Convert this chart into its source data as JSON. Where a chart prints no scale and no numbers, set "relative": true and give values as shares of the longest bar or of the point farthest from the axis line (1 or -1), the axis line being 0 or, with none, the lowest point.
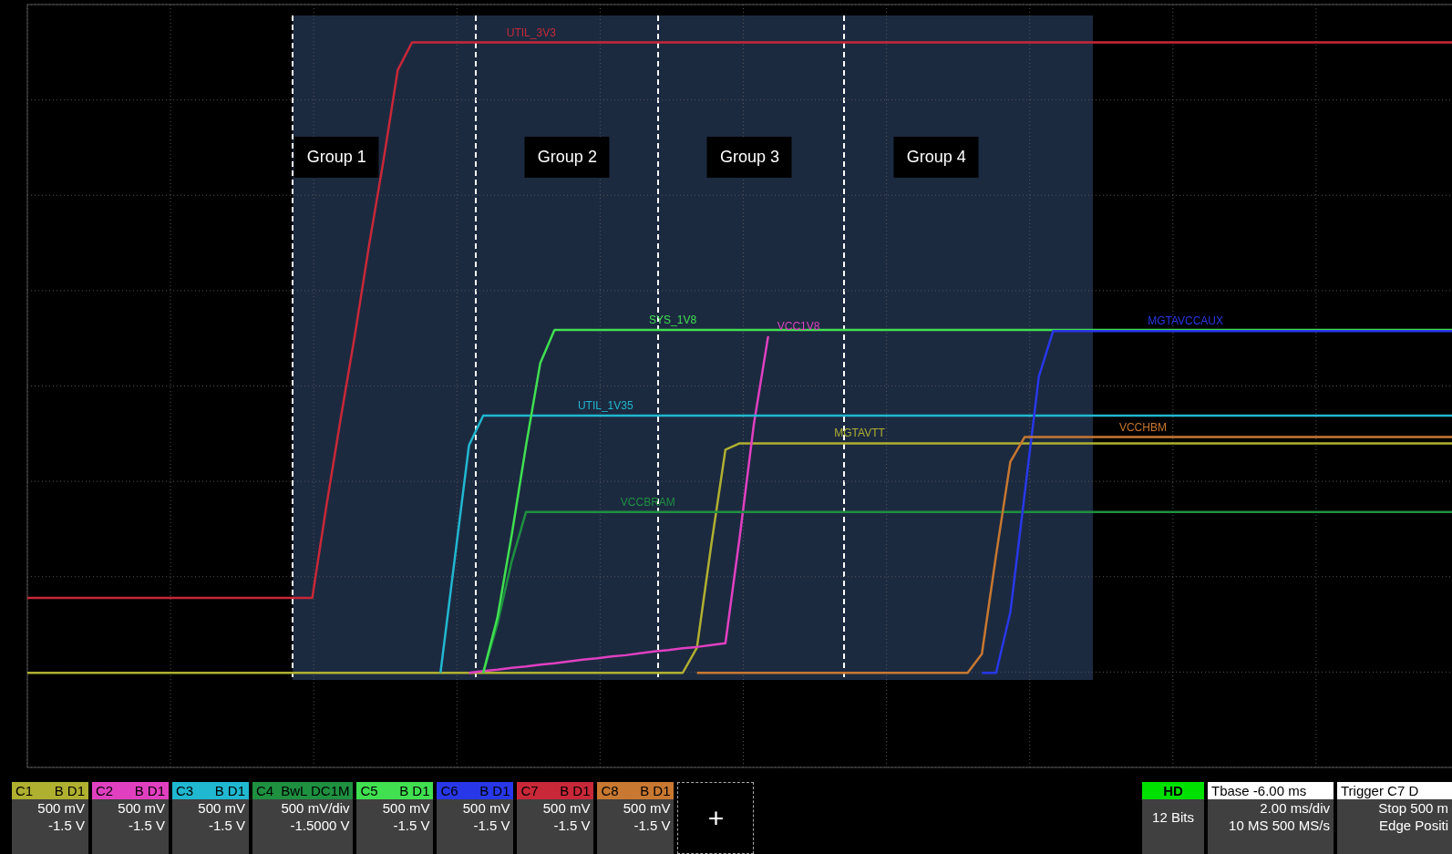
{
  "chart_data": {
    "type": "line",
    "relative": true,
    "grid": true,
    "marker": "none",
    "categories": [
      null,
      null,
      null,
      null,
      null,
      null,
      null,
      null,
      null,
      null,
      null,
      null,
      null,
      null,
      null,
      null,
      null,
      null,
      null,
      null,
      null,
      null,
      null,
      null,
      null,
      null,
      null,
      null,
      null,
      null,
      null,
      null,
      null,
      null,
      null,
      null,
      null,
      null,
      null,
      null,
      null,
      null,
      null,
      null,
      null,
      null,
      null,
      null,
      null,
      null,
      null,
      null,
      null,
      null,
      null,
      null,
      null,
      null,
      null,
      null,
      null,
      null,
      null,
      null,
      null,
      null,
      null,
      null,
      null,
      null,
      null,
      null,
      null,
      null,
      null,
      null,
      null,
      null,
      null,
      null,
      null,
      null,
      null,
      null,
      null,
      null,
      null,
      null,
      null,
      null,
      null,
      null,
      null,
      null,
      null,
      null,
      null,
      null,
      null,
      null,
      null
    ],
    "series": [
      {
        "name": "MGTAVTT",
        "color": "#b0b030",
        "values": [
          0,
          0,
          0,
          0,
          0,
          0,
          0,
          0,
          0,
          0,
          0,
          0,
          0,
          0,
          0,
          0,
          0,
          0,
          0,
          0,
          0,
          0,
          0,
          0,
          0,
          0,
          0,
          0,
          0,
          0,
          0,
          0,
          0,
          0,
          0,
          0,
          0,
          0,
          0,
          0,
          0,
          0,
          0,
          0,
          0,
          0,
          0,
          0.04,
          0.202,
          0.354,
          0.364,
          0.364,
          0.364,
          0.364,
          0.364,
          0.364,
          0.364,
          0.364,
          0.364,
          0.364,
          0.364,
          0.364,
          0.364,
          0.364,
          0.364,
          0.364,
          0.364,
          0.364,
          0.364,
          0.364,
          0.364,
          0.364,
          0.364,
          0.364,
          0.364,
          0.364,
          0.364,
          0.364,
          0.364,
          0.364,
          0.364,
          0.364,
          0.364,
          0.364,
          0.364,
          0.364,
          0.364,
          0.364,
          0.364,
          0.364,
          0.364,
          0.364,
          0.364,
          0.364,
          0.364,
          0.364,
          0.364,
          0.364,
          0.364,
          0.364,
          0.364
        ]
      },
      {
        "name": "VCC1V8",
        "color": "#e040c0",
        "values": [
          null,
          null,
          null,
          null,
          null,
          null,
          null,
          null,
          null,
          null,
          null,
          null,
          null,
          null,
          null,
          null,
          null,
          null,
          null,
          null,
          null,
          null,
          null,
          null,
          null,
          null,
          null,
          null,
          null,
          null,
          null,
          0,
          0.003,
          0.005,
          0.008,
          0.01,
          0.013,
          0.015,
          0.018,
          0.021,
          0.023,
          0.026,
          0.028,
          0.031,
          0.034,
          0.036,
          0.039,
          0.041,
          0.044,
          0.047,
          0.215,
          0.395,
          0.534,
          null,
          null,
          null,
          null,
          null,
          null,
          null,
          null,
          null,
          null,
          null,
          null,
          null,
          null,
          null,
          null,
          null,
          null,
          null,
          null,
          null,
          null,
          null,
          null,
          null,
          null,
          null,
          null,
          null,
          null,
          null,
          null,
          null,
          null,
          null,
          null,
          null,
          null,
          null,
          null,
          null,
          null,
          null,
          null,
          null,
          null,
          null,
          null
        ]
      },
      {
        "name": "UTIL_1V35",
        "color": "#20b8d0",
        "values": [
          null,
          null,
          null,
          null,
          null,
          null,
          null,
          null,
          null,
          null,
          null,
          null,
          null,
          null,
          null,
          null,
          null,
          null,
          null,
          null,
          null,
          null,
          null,
          null,
          null,
          null,
          null,
          null,
          null,
          0,
          0.181,
          0.361,
          0.408,
          0.408,
          0.408,
          0.408,
          0.408,
          0.408,
          0.408,
          0.408,
          0.408,
          0.408,
          0.408,
          0.408,
          0.408,
          0.408,
          0.408,
          0.408,
          0.408,
          0.408,
          0.408,
          0.408,
          0.408,
          0.408,
          0.408,
          0.408,
          0.408,
          0.408,
          0.408,
          0.408,
          0.408,
          0.408,
          0.408,
          0.408,
          0.408,
          0.408,
          0.408,
          0.408,
          0.408,
          0.408,
          0.408,
          0.408,
          0.408,
          0.408,
          0.408,
          0.408,
          0.408,
          0.408,
          0.408,
          0.408,
          0.408,
          0.408,
          0.408,
          0.408,
          0.408,
          0.408,
          0.408,
          0.408,
          0.408,
          0.408,
          0.408,
          0.408,
          0.408,
          0.408,
          0.408,
          0.408,
          0.408,
          0.408,
          0.408,
          0.408,
          0.408
        ]
      },
      {
        "name": "VCCBRAM",
        "color": "#1e9040",
        "values": [
          null,
          null,
          null,
          null,
          null,
          null,
          null,
          null,
          null,
          null,
          null,
          null,
          null,
          null,
          null,
          null,
          null,
          null,
          null,
          null,
          null,
          null,
          null,
          null,
          null,
          null,
          null,
          null,
          null,
          null,
          null,
          null,
          0,
          0.078,
          0.177,
          0.255,
          0.255,
          0.255,
          0.255,
          0.255,
          0.255,
          0.255,
          0.255,
          0.255,
          0.255,
          0.255,
          0.255,
          0.255,
          0.255,
          0.255,
          0.255,
          0.255,
          0.255,
          0.255,
          0.255,
          0.255,
          0.255,
          0.255,
          0.255,
          0.255,
          0.255,
          0.255,
          0.255,
          0.255,
          0.255,
          0.255,
          0.255,
          0.255,
          0.255,
          0.255,
          0.255,
          0.255,
          0.255,
          0.255,
          0.255,
          0.255,
          0.255,
          0.255,
          0.255,
          0.255,
          0.255,
          0.255,
          0.255,
          0.255,
          0.255,
          0.255,
          0.255,
          0.255,
          0.255,
          0.255,
          0.255,
          0.255,
          0.255,
          0.255,
          0.255,
          0.255,
          0.255,
          0.255,
          0.255,
          0.255,
          0.255
        ]
      },
      {
        "name": "SYS_1V8",
        "color": "#40e050",
        "values": [
          null,
          null,
          null,
          null,
          null,
          null,
          null,
          null,
          null,
          null,
          null,
          null,
          null,
          null,
          null,
          null,
          null,
          null,
          null,
          null,
          null,
          null,
          null,
          null,
          null,
          null,
          null,
          null,
          null,
          null,
          null,
          null,
          0,
          0.088,
          0.219,
          0.36,
          0.491,
          0.544,
          0.544,
          0.544,
          0.544,
          0.544,
          0.544,
          0.544,
          0.544,
          0.544,
          0.544,
          0.544,
          0.544,
          0.544,
          0.544,
          0.544,
          0.544,
          0.544,
          0.544,
          0.544,
          0.544,
          0.544,
          0.544,
          0.544,
          0.544,
          0.544,
          0.544,
          0.544,
          0.544,
          0.544,
          0.544,
          0.544,
          0.544,
          0.544,
          0.544,
          0.544,
          0.544,
          0.544,
          0.544,
          0.544,
          0.544,
          0.544,
          0.544,
          0.544,
          0.544,
          0.544,
          0.544,
          0.544,
          0.544,
          0.544,
          0.544,
          0.544,
          0.544,
          0.544,
          0.544,
          0.544,
          0.544,
          0.544,
          0.544,
          0.544,
          0.544,
          0.544,
          0.544,
          0.544,
          0.544
        ]
      },
      {
        "name": "MGTAVCCAUX",
        "color": "#2838e8",
        "values": [
          null,
          null,
          null,
          null,
          null,
          null,
          null,
          null,
          null,
          null,
          null,
          null,
          null,
          null,
          null,
          null,
          null,
          null,
          null,
          null,
          null,
          null,
          null,
          null,
          null,
          null,
          null,
          null,
          null,
          null,
          null,
          null,
          null,
          null,
          null,
          null,
          null,
          null,
          null,
          null,
          null,
          null,
          null,
          null,
          null,
          null,
          null,
          null,
          null,
          null,
          null,
          null,
          null,
          null,
          null,
          null,
          null,
          null,
          null,
          null,
          null,
          null,
          null,
          null,
          null,
          null,
          null,
          0,
          0,
          0.096,
          0.283,
          0.47,
          0.542,
          0.542,
          0.542,
          0.542,
          0.542,
          0.542,
          0.542,
          0.542,
          0.542,
          0.542,
          0.542,
          0.542,
          0.542,
          0.542,
          0.542,
          0.542,
          0.542,
          0.542,
          0.542,
          0.542,
          0.542,
          0.542,
          0.542,
          0.542,
          0.542,
          0.542,
          0.542,
          0.542,
          0.542
        ]
      },
      {
        "name": "UTIL_3V3",
        "color": "#c82838",
        "values": [
          0.119,
          0.119,
          0.119,
          0.119,
          0.119,
          0.119,
          0.119,
          0.119,
          0.119,
          0.119,
          0.119,
          0.119,
          0.119,
          0.119,
          0.119,
          0.119,
          0.119,
          0.119,
          0.119,
          0.119,
          0.119,
          0.266,
          0.404,
          0.537,
          0.68,
          0.813,
          0.956,
          1,
          1,
          1,
          1,
          1,
          1,
          1,
          1,
          1,
          1,
          1,
          1,
          1,
          1,
          1,
          1,
          1,
          1,
          1,
          1,
          1,
          1,
          1,
          1,
          1,
          1,
          1,
          1,
          1,
          1,
          1,
          1,
          1,
          1,
          1,
          1,
          1,
          1,
          1,
          1,
          1,
          1,
          1,
          1,
          1,
          1,
          1,
          1,
          1,
          1,
          1,
          1,
          1,
          1,
          1,
          1,
          1,
          1,
          1,
          1,
          1,
          1,
          1,
          1,
          1,
          1,
          1,
          1,
          1,
          1,
          1,
          1,
          1,
          1
        ]
      },
      {
        "name": "VCCHBM",
        "color": "#c87830",
        "values": [
          null,
          null,
          null,
          null,
          null,
          null,
          null,
          null,
          null,
          null,
          null,
          null,
          null,
          null,
          null,
          null,
          null,
          null,
          null,
          null,
          null,
          null,
          null,
          null,
          null,
          null,
          null,
          null,
          null,
          null,
          null,
          null,
          null,
          null,
          null,
          null,
          null,
          null,
          null,
          null,
          null,
          null,
          null,
          null,
          null,
          null,
          null,
          0,
          0,
          0,
          0,
          0,
          0,
          0,
          0,
          0,
          0,
          0,
          0,
          0,
          0,
          0,
          0,
          0,
          0,
          0,
          0,
          0.03,
          0.187,
          0.335,
          0.374,
          0.374,
          0.374,
          0.374,
          0.374,
          0.374,
          0.374,
          0.374,
          0.374,
          0.374,
          0.374,
          0.374,
          0.374,
          0.374,
          0.374,
          0.374,
          0.374,
          0.374,
          0.374,
          0.374,
          0.374,
          0.374,
          0.374,
          0.374,
          0.374,
          0.374,
          0.374,
          0.374,
          0.374,
          0.374,
          0.374
        ]
      }
    ],
    "annotations": [
      "Group 1",
      "Group 2",
      "Group 3",
      "Group 4",
      "C1 B D1\n500 mV\n-1.5 V",
      "C2 B D1\n500 mV\n-1.5 V",
      "C3 B D1\n500 mV\n-1.5 V",
      "C4 BwL DC1M\n500 mV/div\n-1.5000 V",
      "C5 B D1\n500 mV\n-1.5 V",
      "C6 B D1\n500 mV\n-1.5 V",
      "C7 B D1\n500 mV\n-1.5 V",
      "C8 B D1\n500 mV\n-1.5 V",
      "+",
      "HD\n12 Bits",
      "Tbase -6.00 ms\n2.00 ms/div\n10 MS 500 MS/s",
      "Trigger C7 D\nStop 500 m\nEdge Positi"
    ]
  }
}
